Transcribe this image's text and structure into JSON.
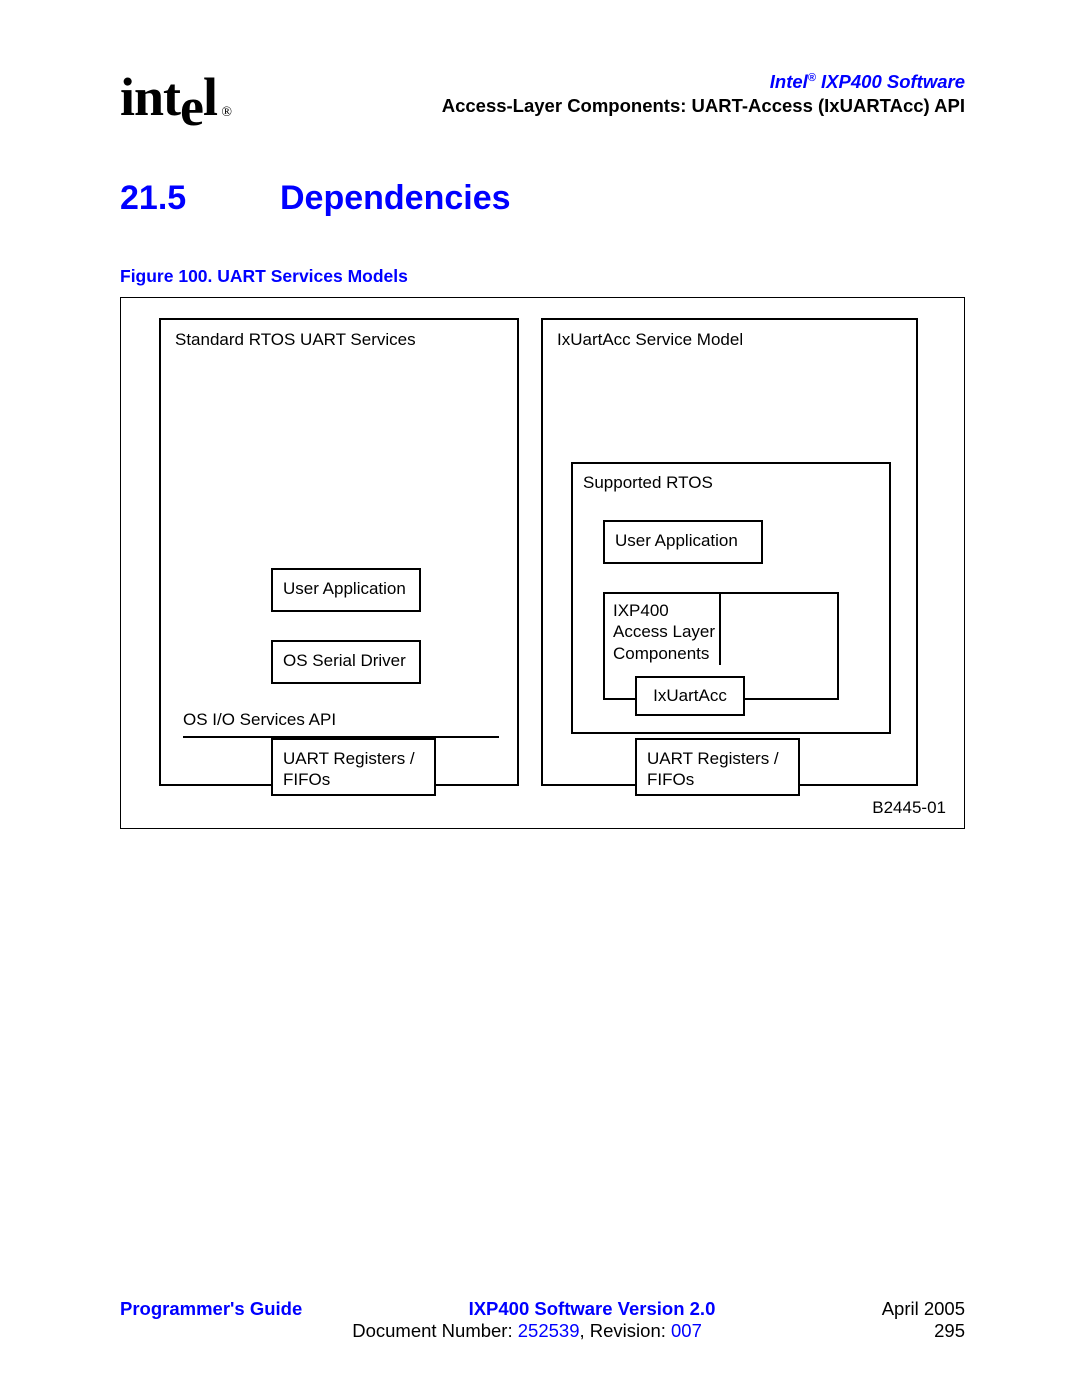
{
  "header": {
    "logo_text": "intel",
    "product_line": "Intel",
    "product_sup": "®",
    "product_line2": " IXP400 Software",
    "subtitle": "Access-Layer Components: UART-Access (IxUARTAcc) API"
  },
  "section": {
    "number": "21.5",
    "title": "Dependencies"
  },
  "figure": {
    "caption": "Figure 100. UART Services Models",
    "left_title": "Standard RTOS UART Services",
    "right_title": "IxUartAcc Service Model",
    "user_app": "User Application",
    "os_serial_driver": "OS Serial Driver",
    "os_io_api": "OS I/O Services API",
    "uart_regs": "UART Registers / FIFOs",
    "supported_rtos": "Supported RTOS",
    "ixp400_layer": "IXP400\nAccess Layer\nComponents",
    "ixuartacc": "IxUartAcc",
    "figure_id": "B2445-01"
  },
  "footer": {
    "guide": "Programmer's Guide",
    "version": "IXP400 Software Version 2.0",
    "date": "April 2005",
    "docnum_label": "Document Number: ",
    "docnum": "252539",
    "revision_label": ", Revision: ",
    "revision": "007",
    "page": "295"
  },
  "colors": {
    "accent": "#0000ff",
    "text": "#000000",
    "background": "#ffffff"
  }
}
